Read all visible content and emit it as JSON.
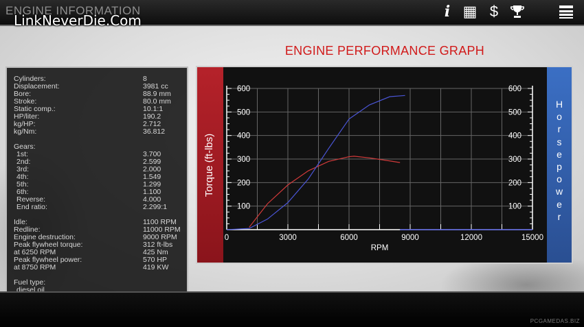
{
  "header": {
    "title": "ENGINE INFORMATION",
    "watermark": "LinkNeverDie.Com",
    "icons": [
      {
        "name": "info-icon",
        "glyph": "i"
      },
      {
        "name": "dyno-icon",
        "glyph": "▦"
      },
      {
        "name": "dollar-icon",
        "glyph": "$"
      },
      {
        "name": "trophy-icon",
        "glyph": "🏆"
      },
      {
        "name": "menu-icon",
        "glyph": "☰"
      }
    ]
  },
  "graph_title": "ENGINE PERFORMANCE GRAPH",
  "specs": {
    "basic": [
      {
        "label": "Cylinders:",
        "value": "8"
      },
      {
        "label": "Displacement:",
        "value": "3981 cc"
      },
      {
        "label": "Bore:",
        "value": "88.9 mm"
      },
      {
        "label": "Stroke:",
        "value": "80.0 mm"
      },
      {
        "label": "Static comp.:",
        "value": "10.1:1"
      },
      {
        "label": "HP/liter:",
        "value": "190.2"
      },
      {
        "label": "kg/HP:",
        "value": "2.712"
      },
      {
        "label": "kg/Nm:",
        "value": "36.812"
      }
    ],
    "gears_label": "Gears:",
    "gears": [
      {
        "label": "1st:",
        "value": "3.700"
      },
      {
        "label": "2nd:",
        "value": "2.599"
      },
      {
        "label": "3rd:",
        "value": "2.000"
      },
      {
        "label": "4th:",
        "value": "1.549"
      },
      {
        "label": "5th:",
        "value": "1.299"
      },
      {
        "label": "6th:",
        "value": "1.100"
      },
      {
        "label": "Reverse:",
        "value": "4.000"
      },
      {
        "label": "End ratio:",
        "value": "2.299:1"
      }
    ],
    "engine": [
      {
        "label": "Idle:",
        "value": "1100 RPM"
      },
      {
        "label": "Redline:",
        "value": "11000 RPM"
      },
      {
        "label": "Engine destruction:",
        "value": "9000 RPM"
      },
      {
        "label": "Peak flywheel torque:",
        "value": "312 ft-lbs"
      },
      {
        "label": " at 6250 RPM",
        "value": "425 Nm"
      },
      {
        "label": "Peak flywheel power:",
        "value": "570 HP"
      },
      {
        "label": " at 8750 RPM",
        "value": "419 KW"
      }
    ],
    "fuel_label": "Fuel type:",
    "fuel_value": "diesel oil"
  },
  "chart_data": {
    "type": "line",
    "xlabel": "RPM",
    "ylabel_left": "Torque (ft-lbs)",
    "ylabel_right": "Horsepower",
    "xlim": [
      0,
      15000
    ],
    "ylim": [
      0,
      600
    ],
    "x_ticks": [
      "0",
      "3000",
      "6000",
      "9000",
      "12000",
      "15000"
    ],
    "y_ticks": [
      "100",
      "200",
      "300",
      "400",
      "500",
      "600"
    ],
    "series": [
      {
        "name": "Torque (ft-lbs)",
        "color": "#d23a3a",
        "x": [
          1100,
          2000,
          3000,
          4000,
          5000,
          6000,
          6250,
          7000,
          8000,
          8500
        ],
        "y": [
          10,
          110,
          190,
          250,
          290,
          310,
          312,
          305,
          292,
          285
        ]
      },
      {
        "name": "Horsepower",
        "color": "#4a55d6",
        "x": [
          0,
          1100,
          2000,
          3000,
          4000,
          5000,
          6000,
          7000,
          8000,
          8750,
          8500,
          15000
        ],
        "y": [
          0,
          5,
          45,
          115,
          215,
          345,
          470,
          530,
          565,
          570,
          0,
          0
        ]
      }
    ]
  },
  "footer": {
    "credit": "PCGAMEDAS.BIZ"
  }
}
